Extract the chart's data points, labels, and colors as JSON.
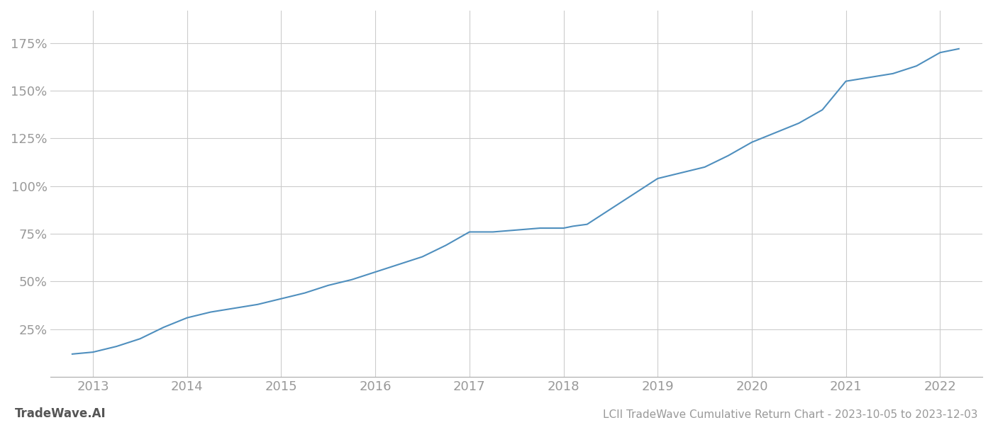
{
  "title": "LCII TradeWave Cumulative Return Chart - 2023-10-05 to 2023-12-03",
  "watermark": "TradeWave.AI",
  "line_color": "#4f8fbe",
  "background_color": "#ffffff",
  "grid_color": "#cccccc",
  "x_years": [
    2013,
    2014,
    2015,
    2016,
    2017,
    2018,
    2019,
    2020,
    2021,
    2022
  ],
  "x_data": [
    2012.78,
    2013.0,
    2013.25,
    2013.5,
    2013.75,
    2014.0,
    2014.25,
    2014.5,
    2014.75,
    2015.0,
    2015.25,
    2015.5,
    2015.75,
    2016.0,
    2016.25,
    2016.5,
    2016.75,
    2017.0,
    2017.1,
    2017.25,
    2017.5,
    2017.75,
    2018.0,
    2018.1,
    2018.25,
    2018.5,
    2018.75,
    2019.0,
    2019.25,
    2019.5,
    2019.75,
    2020.0,
    2020.25,
    2020.5,
    2020.75,
    2021.0,
    2021.25,
    2021.5,
    2021.75,
    2022.0,
    2022.2
  ],
  "y_data": [
    12,
    13,
    16,
    20,
    26,
    31,
    34,
    36,
    38,
    41,
    44,
    48,
    51,
    55,
    59,
    63,
    69,
    76,
    76,
    76,
    77,
    78,
    78,
    79,
    80,
    88,
    96,
    104,
    107,
    110,
    116,
    123,
    128,
    133,
    140,
    155,
    157,
    159,
    163,
    170,
    172
  ],
  "ylim_bottom": 0,
  "ylim_top": 192,
  "yticks": [
    25,
    50,
    75,
    100,
    125,
    150,
    175
  ],
  "xlim": [
    2012.55,
    2022.45
  ],
  "title_fontsize": 11,
  "watermark_fontsize": 12,
  "tick_label_color": "#999999",
  "tick_label_size": 13
}
